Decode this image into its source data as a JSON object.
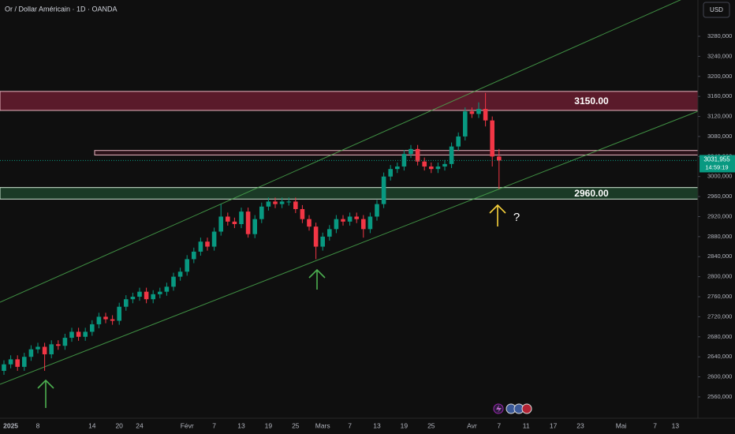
{
  "chart_data": {
    "type": "candlestick",
    "title": "Or / Dollar Américain · 1D · OANDA",
    "currency": "USD",
    "categories": [
      null,
      "2025",
      null,
      null,
      null,
      "8",
      null,
      null,
      null,
      null,
      null,
      null,
      null,
      "14",
      null,
      null,
      null,
      "20",
      null,
      null,
      "24",
      null,
      null,
      null,
      null,
      null,
      null,
      "Févr",
      null,
      null,
      null,
      "7",
      null,
      null,
      null,
      "13",
      null,
      null,
      null,
      "19",
      null,
      null,
      null,
      "25",
      null,
      null,
      null,
      "Mars",
      null,
      null,
      null,
      "7",
      null,
      null,
      null,
      "13",
      null,
      null,
      null,
      "19",
      null,
      null,
      null,
      "25",
      null,
      null,
      null,
      null,
      null,
      "Avr",
      null,
      null,
      null,
      "7",
      null,
      null,
      null,
      "11",
      null,
      null,
      null,
      "17",
      null,
      null,
      null,
      "23",
      null,
      null,
      null,
      null,
      null,
      "Mai",
      null,
      null,
      null,
      null,
      "7",
      null,
      null,
      "13",
      null
    ],
    "ohlc": {
      "open": [
        2612,
        2625,
        2635,
        2620,
        2640,
        2655,
        2660,
        2645,
        2665,
        2662,
        2678,
        2690,
        2680,
        2690,
        2705,
        2720,
        2715,
        2712,
        2740,
        2755,
        2760,
        2770,
        2755,
        2765,
        2770,
        2780,
        2800,
        2810,
        2835,
        2850,
        2870,
        2860,
        2890,
        2920,
        2910,
        2905,
        2930,
        2885,
        2915,
        2940,
        2950,
        2945,
        2950,
        2950,
        2935,
        2915,
        2900,
        2860,
        2880,
        2895,
        2915,
        2910,
        2920,
        2915,
        2895,
        2920,
        2945,
        3000,
        3015,
        3020,
        3045,
        3055,
        3030,
        3020,
        3015,
        3020,
        3025,
        3060,
        3080,
        3130,
        3125,
        3135,
        3112,
        3040,
        null,
        null,
        null,
        null,
        null,
        null,
        null,
        null,
        null,
        null,
        null,
        null,
        null,
        null,
        null,
        null,
        null,
        null,
        null,
        null,
        null,
        null,
        null,
        null,
        null,
        null,
        null
      ],
      "high": [
        2633,
        2643,
        2643,
        2648,
        2663,
        2668,
        2668,
        2673,
        2673,
        2686,
        2698,
        2698,
        2698,
        2713,
        2728,
        2728,
        2723,
        2748,
        2763,
        2768,
        2778,
        2778,
        2773,
        2778,
        2788,
        2808,
        2818,
        2843,
        2858,
        2878,
        2878,
        2898,
        2945,
        2928,
        2918,
        2938,
        2938,
        2923,
        2948,
        2958,
        2958,
        2958,
        2958,
        2958,
        2943,
        2923,
        2908,
        2888,
        2903,
        2923,
        2923,
        2928,
        2928,
        2923,
        2928,
        2953,
        3008,
        3023,
        3028,
        3053,
        3063,
        3063,
        3038,
        3028,
        3028,
        3033,
        3068,
        3088,
        3138,
        3138,
        3148,
        3167,
        3120,
        3055,
        null,
        null,
        null,
        null,
        null,
        null,
        null,
        null,
        null,
        null,
        null,
        null,
        null,
        null,
        null,
        null,
        null,
        null,
        null,
        null,
        null,
        null,
        null,
        null,
        null,
        null,
        null
      ],
      "low": [
        2604,
        2617,
        2612,
        2612,
        2632,
        2647,
        2612,
        2637,
        2654,
        2654,
        2670,
        2672,
        2672,
        2682,
        2697,
        2707,
        2704,
        2704,
        2732,
        2747,
        2752,
        2747,
        2747,
        2757,
        2762,
        2772,
        2792,
        2802,
        2827,
        2842,
        2852,
        2852,
        2882,
        2902,
        2897,
        2897,
        2878,
        2877,
        2907,
        2932,
        2937,
        2937,
        2942,
        2927,
        2907,
        2892,
        2835,
        2852,
        2872,
        2887,
        2902,
        2902,
        2907,
        2878,
        2887,
        2912,
        2937,
        2992,
        3007,
        3012,
        3037,
        3022,
        3012,
        3007,
        3007,
        3012,
        3017,
        3052,
        3072,
        3117,
        3117,
        3100,
        3020,
        2975,
        null,
        null,
        null,
        null,
        null,
        null,
        null,
        null,
        null,
        null,
        null,
        null,
        null,
        null,
        null,
        null,
        null,
        null,
        null,
        null,
        null,
        null,
        null,
        null,
        null,
        null,
        null
      ],
      "close": [
        2625,
        2635,
        2620,
        2640,
        2655,
        2660,
        2645,
        2665,
        2662,
        2678,
        2690,
        2680,
        2690,
        2705,
        2720,
        2715,
        2712,
        2740,
        2755,
        2760,
        2770,
        2755,
        2765,
        2770,
        2780,
        2800,
        2810,
        2835,
        2850,
        2870,
        2860,
        2890,
        2920,
        2910,
        2905,
        2930,
        2885,
        2915,
        2940,
        2950,
        2945,
        2950,
        2950,
        2935,
        2915,
        2900,
        2860,
        2880,
        2895,
        2915,
        2910,
        2920,
        2915,
        2895,
        2920,
        2945,
        3000,
        3015,
        3020,
        3045,
        3055,
        3030,
        3020,
        3015,
        3020,
        3025,
        3060,
        3080,
        3130,
        3125,
        3135,
        3112,
        3040,
        3031.955,
        null,
        null,
        null,
        null,
        null,
        null,
        null,
        null,
        null,
        null,
        null,
        null,
        null,
        null,
        null,
        null,
        null,
        null,
        null,
        null,
        null,
        null,
        null,
        null,
        null,
        null,
        null
      ]
    },
    "up_color": "#089981",
    "down_color": "#f23645",
    "ylim": [
      2517.4,
      3352.5
    ],
    "yticks": [
      {
        "value": 2560,
        "label": "2560,000"
      },
      {
        "value": 2600,
        "label": "2600,000"
      },
      {
        "value": 2640,
        "label": "2640,000"
      },
      {
        "value": 2680,
        "label": "2680,000"
      },
      {
        "value": 2720,
        "label": "2720,000"
      },
      {
        "value": 2760,
        "label": "2760,000"
      },
      {
        "value": 2800,
        "label": "2800,000"
      },
      {
        "value": 2840,
        "label": "2840,000"
      },
      {
        "value": 2880,
        "label": "2880,000"
      },
      {
        "value": 2920,
        "label": "2920,000"
      },
      {
        "value": 2960,
        "label": "2960,000"
      },
      {
        "value": 3000,
        "label": "3000,000"
      },
      {
        "value": 3040,
        "label": "3040,000"
      },
      {
        "value": 3080,
        "label": "3080,000"
      },
      {
        "value": 3120,
        "label": "3120,000"
      },
      {
        "value": 3160,
        "label": "3160,000"
      },
      {
        "value": 3200,
        "label": "3200,000"
      },
      {
        "value": 3240,
        "label": "3240,000"
      },
      {
        "value": 3280,
        "label": "3280,000"
      }
    ],
    "last_price": {
      "label": "3031,955",
      "timer": "14:59:19"
    },
    "zones": [
      {
        "label": "3150.00",
        "low": 3132,
        "high": 3170,
        "color": "#5a1a2a"
      },
      {
        "low": 3043,
        "high": 3052,
        "color": "#2a1118"
      },
      {
        "label": "2960.00",
        "low": 2955,
        "high": 2978,
        "color": "#1b3a26"
      }
    ],
    "annotation": "?"
  }
}
